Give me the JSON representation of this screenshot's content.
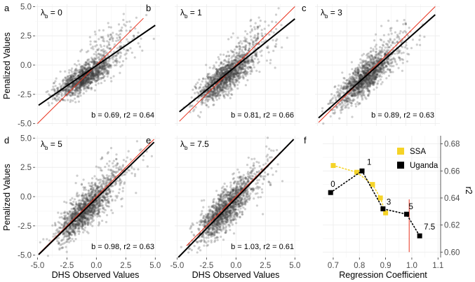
{
  "figure": {
    "ylabel_left": "Penalized Values",
    "xlabel_bottom": "DHS Observed Values",
    "xlabel_f": "Regression Coefficient",
    "ylabel_f_right": "r2"
  },
  "colors": {
    "points": "#3a3a3a",
    "fit_line": "#000000",
    "identity_line": "#e8321e",
    "grid": "#ebebeb",
    "ssa": "#f5d327",
    "uganda": "#000000"
  },
  "chart_data": [
    {
      "type": "scatter",
      "panel": "a",
      "lambda_label": "0",
      "annotation": "b = 0.69, r2 = 0.64",
      "xlim": [
        -5.2,
        5.4
      ],
      "ylim": [
        -5.2,
        5.2
      ],
      "xticks": [
        -5.0,
        -2.5,
        0.0,
        2.5,
        5.0
      ],
      "yticks": [
        -5.0,
        -2.5,
        0.0,
        2.5,
        5.0
      ],
      "xtick_labels": [
        "-5.0",
        "-2.5",
        "0.0",
        "2.5",
        "5.0"
      ],
      "ytick_labels": [
        "-5.0",
        "-2.5",
        "0.0",
        "2.5",
        "5.0"
      ],
      "show_xticks": false,
      "show_yticks": true,
      "cloud": {
        "cx": -1.0,
        "cy": -1.05,
        "sx": 1.15,
        "sy": 0.85,
        "rho": 0.75,
        "n": 1400,
        "seed": 11
      },
      "fit_line": {
        "slope": 0.69,
        "intercept": -0.05,
        "x_range": [
          -4.9,
          5.0
        ]
      },
      "identity_line": {
        "x_range": [
          -5.0,
          4.0
        ]
      }
    },
    {
      "type": "scatter",
      "panel": "b",
      "lambda_label": "1",
      "annotation": "b = 0.81, r2 = 0.66",
      "xlim": [
        -5.2,
        5.4
      ],
      "ylim": [
        -5.2,
        5.2
      ],
      "xticks": [
        -5.0,
        -2.5,
        0.0,
        2.5,
        5.0
      ],
      "yticks": [
        -5.0,
        -2.5,
        0.0,
        2.5,
        5.0
      ],
      "xtick_labels": [
        "-5.0",
        "-2.5",
        "0.0",
        "2.5",
        "5.0"
      ],
      "ytick_labels": [
        "-5.0",
        "-2.5",
        "0.0",
        "2.5",
        "5.0"
      ],
      "show_xticks": false,
      "show_yticks": false,
      "cloud": {
        "cx": -1.0,
        "cy": -1.1,
        "sx": 1.15,
        "sy": 1.05,
        "rho": 0.78,
        "n": 1400,
        "seed": 23
      },
      "fit_line": {
        "slope": 0.81,
        "intercept": -0.1,
        "x_range": [
          -4.8,
          5.0
        ]
      },
      "identity_line": {
        "x_range": [
          -4.8,
          5.0
        ]
      }
    },
    {
      "type": "scatter",
      "panel": "c",
      "lambda_label": "3",
      "annotation": "b = 0.89, r2 = 0.63",
      "xlim": [
        -5.2,
        5.4
      ],
      "ylim": [
        -5.2,
        5.2
      ],
      "xticks": [
        -5.0,
        -2.5,
        0.0,
        2.5,
        5.0
      ],
      "yticks": [
        -5.0,
        -2.5,
        0.0,
        2.5,
        5.0
      ],
      "xtick_labels": [
        "-5.0",
        "-2.5",
        "0.0",
        "2.5",
        "5.0"
      ],
      "ytick_labels": [
        "-5.0",
        "-2.5",
        "0.0",
        "2.5",
        "5.0"
      ],
      "show_xticks": false,
      "show_yticks": false,
      "cloud": {
        "cx": -1.0,
        "cy": -1.15,
        "sx": 1.15,
        "sy": 1.15,
        "rho": 0.79,
        "n": 1400,
        "seed": 37
      },
      "fit_line": {
        "slope": 0.89,
        "intercept": -0.15,
        "x_range": [
          -4.9,
          5.0
        ]
      },
      "identity_line": {
        "x_range": [
          -4.9,
          5.0
        ]
      }
    },
    {
      "type": "scatter",
      "panel": "d",
      "lambda_label": "5",
      "annotation": "b = 0.98, r2 = 0.63",
      "xlim": [
        -5.2,
        5.4
      ],
      "ylim": [
        -5.2,
        5.2
      ],
      "xticks": [
        -5.0,
        -2.5,
        0.0,
        2.5,
        5.0
      ],
      "yticks": [
        -5.0,
        -2.5,
        0.0,
        2.5,
        5.0
      ],
      "xtick_labels": [
        "-5.0",
        "-2.5",
        "0.0",
        "2.5",
        "5.0"
      ],
      "ytick_labels": [
        "-5.0",
        "-2.5",
        "0.0",
        "2.5",
        "5.0"
      ],
      "show_xticks": true,
      "show_yticks": true,
      "cloud": {
        "cx": -1.0,
        "cy": -1.2,
        "sx": 1.15,
        "sy": 1.25,
        "rho": 0.79,
        "n": 1400,
        "seed": 41
      },
      "fit_line": {
        "slope": 0.98,
        "intercept": -0.15,
        "x_range": [
          -4.9,
          4.9
        ]
      },
      "identity_line": {
        "x_range": [
          -4.9,
          4.9
        ]
      }
    },
    {
      "type": "scatter",
      "panel": "e",
      "lambda_label": "7.5",
      "annotation": "b = 1.03, r2 = 0.61",
      "xlim": [
        -5.2,
        5.4
      ],
      "ylim": [
        -5.2,
        5.2
      ],
      "xticks": [
        -5.0,
        -2.5,
        0.0,
        2.5,
        5.0
      ],
      "yticks": [
        -5.0,
        -2.5,
        0.0,
        2.5,
        5.0
      ],
      "xtick_labels": [
        "-5.0",
        "-2.5",
        "0.0",
        "2.5",
        "5.0"
      ],
      "ytick_labels": [
        "-5.0",
        "-2.5",
        "0.0",
        "2.5",
        "5.0"
      ],
      "show_xticks": true,
      "show_yticks": false,
      "cloud": {
        "cx": -1.0,
        "cy": -1.2,
        "sx": 1.15,
        "sy": 1.3,
        "rho": 0.78,
        "n": 1400,
        "seed": 53
      },
      "fit_line": {
        "slope": 1.03,
        "intercept": -0.15,
        "x_range": [
          -4.9,
          4.9
        ]
      },
      "identity_line": {
        "x_range": [
          -4.2,
          4.8
        ]
      }
    },
    {
      "type": "scatter",
      "panel": "f",
      "xlabel": "Regression Coefficient",
      "ylabel": "r2",
      "xlim": [
        0.66,
        1.11
      ],
      "ylim": [
        0.596,
        0.686
      ],
      "xticks": [
        0.7,
        0.8,
        0.9,
        1.0,
        1.1
      ],
      "xtick_labels": [
        "0.7",
        "0.8",
        "0.9",
        "1.0",
        "1.1"
      ],
      "yticks": [
        0.6,
        0.62,
        0.64,
        0.66,
        0.68
      ],
      "ytick_labels": [
        "0.60",
        "0.62",
        "0.64",
        "0.66",
        "0.68"
      ],
      "legend": {
        "position": "top-right",
        "entries": [
          "SSA",
          "Uganda"
        ]
      },
      "vline": {
        "x": 0.99,
        "y_range": [
          0.6,
          0.639
        ]
      },
      "series": [
        {
          "name": "SSA",
          "x": [
            0.7,
            0.79,
            0.85,
            0.88,
            0.9
          ],
          "y": [
            0.664,
            0.659,
            0.65,
            0.64,
            0.629
          ]
        },
        {
          "name": "Uganda",
          "x": [
            0.69,
            0.81,
            0.89,
            0.98,
            1.03
          ],
          "y": [
            0.644,
            0.66,
            0.632,
            0.628,
            0.612
          ],
          "point_labels": [
            "0",
            "1",
            "3",
            "5",
            "7.5"
          ]
        }
      ]
    }
  ]
}
